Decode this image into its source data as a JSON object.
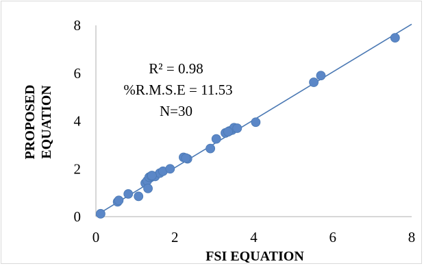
{
  "chart_data": {
    "type": "scatter",
    "xlabel": "FSI EQUATION",
    "ylabel_lines": [
      "PROPOSED",
      "EQUATION"
    ],
    "xlim": [
      0,
      8
    ],
    "ylim": [
      0,
      8
    ],
    "x_ticks": [
      "0",
      "2",
      "4",
      "6",
      "8"
    ],
    "y_ticks": [
      "0",
      "2",
      "4",
      "6",
      "8"
    ],
    "annotations": [
      "R² = 0.98",
      "%R.M.S.E = 11.53",
      "N=30"
    ],
    "trendline": {
      "type": "linear",
      "from": [
        0,
        0.05
      ],
      "to": [
        8,
        8.05
      ]
    },
    "colors": {
      "marker": "#5b87c7",
      "trendline": "#4a78b3",
      "axis": "#bfbfbf",
      "border": "#d9d9d9"
    },
    "points": [
      [
        0.12,
        0.12
      ],
      [
        0.55,
        0.62
      ],
      [
        0.58,
        0.68
      ],
      [
        0.82,
        0.95
      ],
      [
        1.08,
        0.85
      ],
      [
        1.25,
        1.4
      ],
      [
        1.3,
        1.5
      ],
      [
        1.32,
        1.18
      ],
      [
        1.35,
        1.65
      ],
      [
        1.4,
        1.7
      ],
      [
        1.5,
        1.68
      ],
      [
        1.62,
        1.82
      ],
      [
        1.7,
        1.9
      ],
      [
        1.88,
        2.0
      ],
      [
        2.22,
        2.48
      ],
      [
        2.32,
        2.42
      ],
      [
        2.9,
        2.85
      ],
      [
        3.05,
        3.25
      ],
      [
        3.28,
        3.5
      ],
      [
        3.38,
        3.58
      ],
      [
        3.45,
        3.62
      ],
      [
        3.5,
        3.72
      ],
      [
        3.58,
        3.7
      ],
      [
        4.05,
        3.95
      ],
      [
        5.52,
        5.62
      ],
      [
        5.7,
        5.9
      ],
      [
        7.58,
        7.48
      ],
      [
        1.42,
        1.72
      ],
      [
        2.28,
        2.45
      ],
      [
        3.35,
        3.55
      ]
    ]
  }
}
